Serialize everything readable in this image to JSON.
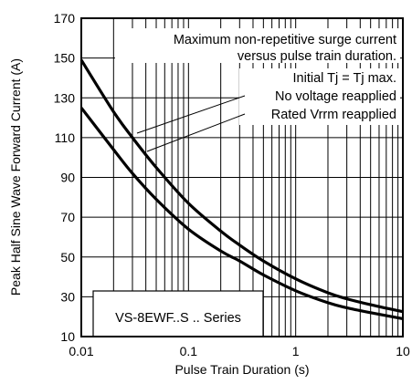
{
  "chart_data": {
    "type": "line",
    "xlabel": "Pulse Train Duration (s)",
    "ylabel": "Peak Half Sine Wave Forward Current (A)",
    "x_scale": "log",
    "xlim": [
      0.01,
      10
    ],
    "ylim": [
      10,
      170
    ],
    "x_ticks": [
      {
        "value": 0.01,
        "label": "0.01"
      },
      {
        "value": 0.1,
        "label": "0.1"
      },
      {
        "value": 1,
        "label": "1"
      },
      {
        "value": 10,
        "label": "10"
      }
    ],
    "y_ticks": [
      {
        "value": 10,
        "label": "10"
      },
      {
        "value": 30,
        "label": "30"
      },
      {
        "value": 50,
        "label": "50"
      },
      {
        "value": 70,
        "label": "70"
      },
      {
        "value": 90,
        "label": "90"
      },
      {
        "value": 110,
        "label": "110"
      },
      {
        "value": 130,
        "label": "130"
      },
      {
        "value": 150,
        "label": "150"
      },
      {
        "value": 170,
        "label": "170"
      }
    ],
    "grid": true,
    "series": [
      {
        "name": "No voltage reapplied",
        "x": [
          0.01,
          0.02,
          0.03,
          0.05,
          0.1,
          0.2,
          0.3,
          0.5,
          1,
          2,
          3,
          5,
          10
        ],
        "y": [
          149,
          123,
          110,
          95,
          77,
          63,
          56,
          48,
          39,
          32,
          29,
          26,
          22.5
        ]
      },
      {
        "name": "Rated Vrrm reapplied",
        "x": [
          0.01,
          0.02,
          0.03,
          0.05,
          0.1,
          0.2,
          0.3,
          0.5,
          1,
          2,
          3,
          5,
          10
        ],
        "y": [
          125,
          104,
          92,
          79,
          64,
          53,
          48,
          41,
          33,
          27,
          24.5,
          22,
          19
        ]
      }
    ],
    "annotations": [
      "Maximum non-repetitive surge current",
      "versus pulse train duration.",
      "Initial Tj = Tj max.",
      "No voltage reapplied",
      "Rated Vrrm reapplied",
      "VS-8EWF..S .. Series"
    ]
  }
}
